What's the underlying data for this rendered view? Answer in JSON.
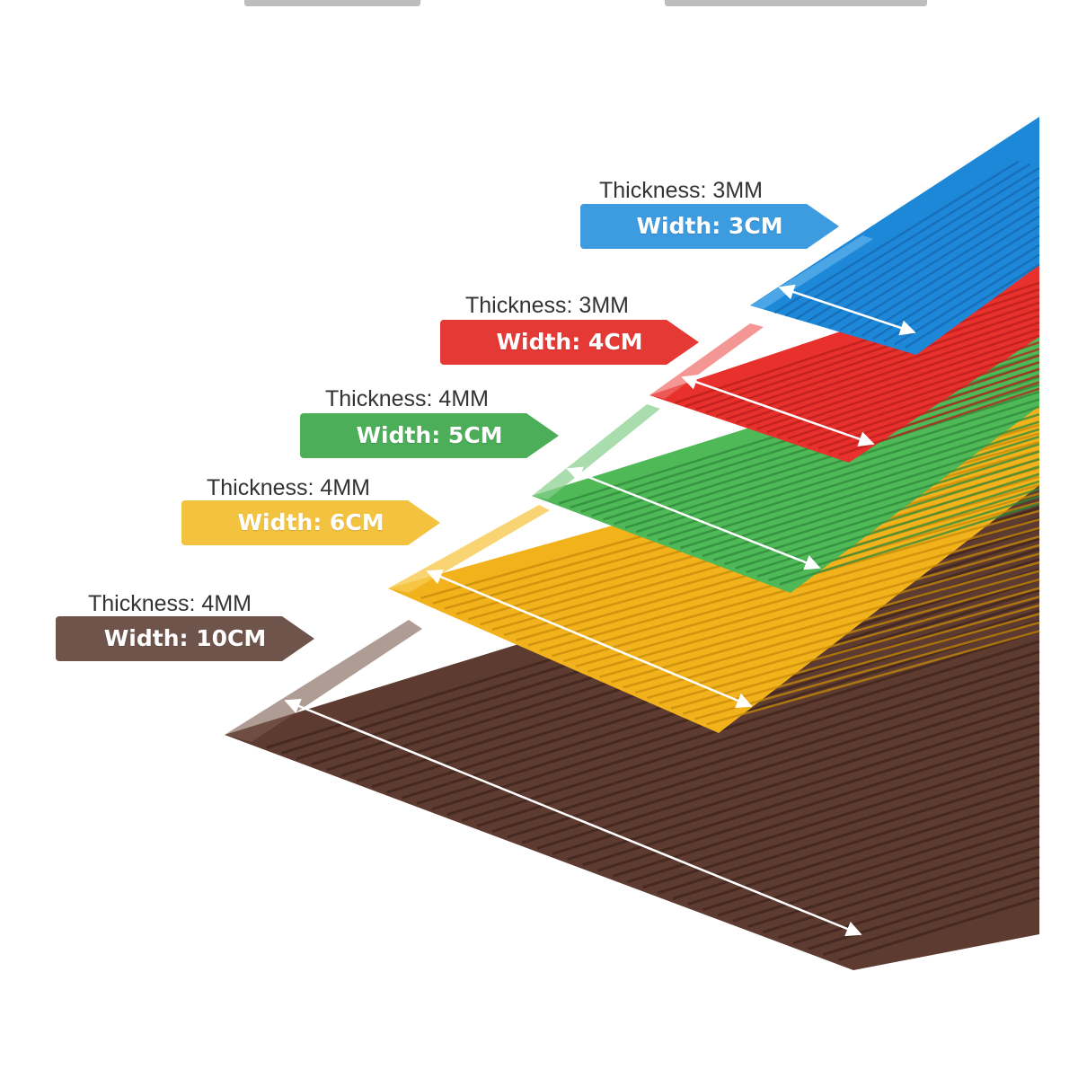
{
  "strips": [
    {
      "id": "blue",
      "color": "#1e88d8",
      "rib": "#1569b0",
      "thickness": "Thickness: 3MM",
      "width": "Width: 3CM"
    },
    {
      "id": "red",
      "color": "#e8302c",
      "rib": "#b81e1b",
      "thickness": "Thickness: 3MM",
      "width": "Width: 4CM"
    },
    {
      "id": "green",
      "color": "#4fb857",
      "rib": "#2f8a3a",
      "thickness": "Thickness: 4MM",
      "width": "Width: 5CM"
    },
    {
      "id": "yellow",
      "color": "#f2b21c",
      "rib": "#c78a08",
      "thickness": "Thickness: 4MM",
      "width": "Width: 6CM"
    },
    {
      "id": "brown",
      "color": "#5e3b30",
      "rib": "#3e241c",
      "thickness": "Thickness: 4MM",
      "width": "Width: 10CM"
    }
  ],
  "tag_colors": {
    "blue": "#3d9be0",
    "red": "#e53935",
    "green": "#4cae58",
    "yellow": "#f3c340",
    "brown": "#6e544b"
  }
}
